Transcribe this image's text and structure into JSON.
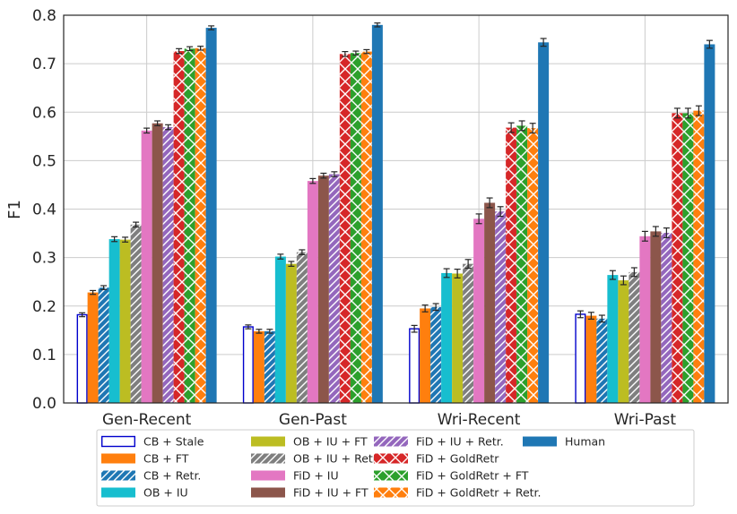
{
  "chart_data": {
    "type": "bar",
    "title": "",
    "xlabel": "",
    "ylabel": "F1",
    "ylim": [
      0.0,
      0.8
    ],
    "yticks": [
      "0.0",
      "0.1",
      "0.2",
      "0.3",
      "0.4",
      "0.5",
      "0.6",
      "0.7",
      "0.8"
    ],
    "grid": true,
    "legend_position": "bottom",
    "categories": [
      "Gen-Recent",
      "Gen-Past",
      "Wri-Recent",
      "Wri-Past"
    ],
    "series": [
      {
        "name": "CB + Stale",
        "color": "#0000cc",
        "style": "outline",
        "values": [
          0.182,
          0.157,
          0.153,
          0.183
        ],
        "errors": [
          0.004,
          0.004,
          0.007,
          0.007
        ]
      },
      {
        "name": "CB + FT",
        "color": "#ff7f0e",
        "style": "solid",
        "values": [
          0.228,
          0.148,
          0.195,
          0.18
        ],
        "errors": [
          0.004,
          0.004,
          0.007,
          0.007
        ]
      },
      {
        "name": "CB + Retr.",
        "color": "#1f77b4",
        "style": "hatch",
        "values": [
          0.238,
          0.148,
          0.198,
          0.174
        ],
        "errors": [
          0.004,
          0.004,
          0.007,
          0.007
        ]
      },
      {
        "name": "OB + IU",
        "color": "#17becf",
        "style": "solid",
        "values": [
          0.338,
          0.302,
          0.268,
          0.264
        ],
        "errors": [
          0.005,
          0.005,
          0.009,
          0.009
        ]
      },
      {
        "name": "OB + IU + FT",
        "color": "#bcbd22",
        "style": "solid",
        "values": [
          0.337,
          0.287,
          0.267,
          0.253
        ],
        "errors": [
          0.005,
          0.005,
          0.009,
          0.009
        ]
      },
      {
        "name": "OB + IU + Retr.",
        "color": "#7f7f7f",
        "style": "hatch",
        "values": [
          0.368,
          0.311,
          0.287,
          0.27
        ],
        "errors": [
          0.005,
          0.005,
          0.009,
          0.009
        ]
      },
      {
        "name": "FiD + IU",
        "color": "#e377c2",
        "style": "solid",
        "values": [
          0.562,
          0.458,
          0.38,
          0.344
        ],
        "errors": [
          0.005,
          0.005,
          0.01,
          0.01
        ]
      },
      {
        "name": "FiD + IU + FT",
        "color": "#8c564b",
        "style": "solid",
        "values": [
          0.577,
          0.469,
          0.413,
          0.354
        ],
        "errors": [
          0.005,
          0.005,
          0.01,
          0.01
        ]
      },
      {
        "name": "FiD + IU + Retr.",
        "color": "#9467bd",
        "style": "hatch",
        "values": [
          0.569,
          0.472,
          0.395,
          0.351
        ],
        "errors": [
          0.005,
          0.005,
          0.01,
          0.01
        ]
      },
      {
        "name": "FiD + GoldRetr",
        "color": "#d62728",
        "style": "xhatch",
        "values": [
          0.726,
          0.72,
          0.568,
          0.598
        ],
        "errors": [
          0.005,
          0.005,
          0.01,
          0.01
        ]
      },
      {
        "name": "FiD + GoldRetr + FT",
        "color": "#2ca02c",
        "style": "xhatch",
        "values": [
          0.731,
          0.722,
          0.572,
          0.598
        ],
        "errors": [
          0.004,
          0.004,
          0.01,
          0.01
        ]
      },
      {
        "name": "FiD + GoldRetr + Retr.",
        "color": "#ff7f0e",
        "style": "xhatch",
        "values": [
          0.732,
          0.725,
          0.567,
          0.603
        ],
        "errors": [
          0.004,
          0.004,
          0.01,
          0.01
        ]
      },
      {
        "name": "Human",
        "color": "#1f77b4",
        "style": "solid",
        "values": [
          0.774,
          0.78,
          0.744,
          0.74
        ],
        "errors": [
          0.004,
          0.004,
          0.008,
          0.008
        ]
      }
    ]
  }
}
